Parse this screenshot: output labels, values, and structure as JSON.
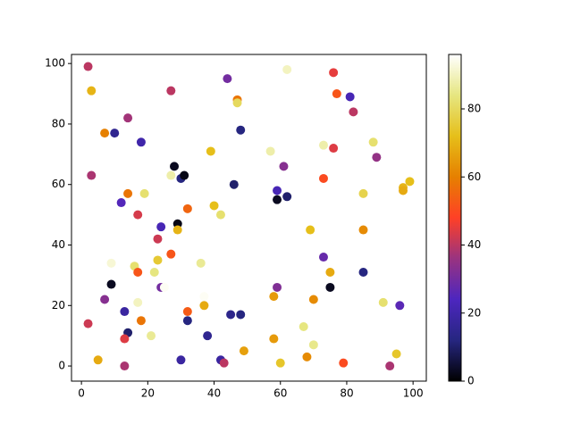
{
  "chart_data": {
    "type": "scatter",
    "x": [
      2,
      3,
      27,
      44,
      47,
      47,
      62,
      76,
      77,
      81,
      82,
      7,
      10,
      14,
      18,
      48,
      39,
      57,
      73,
      76,
      88,
      89,
      3,
      28,
      27,
      30,
      31,
      46,
      61,
      73,
      14,
      19,
      12,
      17,
      32,
      40,
      42,
      59,
      59,
      62,
      85,
      97,
      97,
      99,
      24,
      29,
      29,
      23,
      69,
      85,
      9,
      16,
      23,
      27,
      22,
      17,
      36,
      73,
      75,
      85,
      9,
      7,
      24,
      25,
      37,
      37,
      58,
      59,
      70,
      75,
      91,
      96,
      2,
      13,
      17,
      18,
      32,
      32,
      45,
      48,
      14,
      13,
      21,
      38,
      67,
      70,
      58,
      68,
      49,
      5,
      30,
      42,
      43,
      60,
      79,
      95,
      13,
      93
    ],
    "y": [
      99,
      91,
      91,
      95,
      88,
      87,
      98,
      97,
      90,
      89,
      84,
      77,
      77,
      82,
      74,
      78,
      71,
      71,
      73,
      72,
      74,
      69,
      63,
      66,
      63,
      62,
      63,
      60,
      66,
      62,
      57,
      57,
      54,
      50,
      52,
      53,
      50,
      58,
      55,
      56,
      57,
      59,
      58,
      61,
      46,
      47,
      45,
      42,
      45,
      45,
      34,
      33,
      35,
      37,
      31,
      31,
      34,
      36,
      31,
      31,
      27,
      22,
      26,
      26,
      23,
      20,
      23,
      26,
      22,
      26,
      21,
      20,
      14,
      18,
      21,
      15,
      18,
      15,
      17,
      17,
      11,
      9,
      10,
      10,
      13,
      7,
      9,
      3,
      5,
      2,
      2,
      2,
      1,
      1,
      1,
      4,
      0,
      0
    ],
    "c": [
      40,
      70,
      40,
      30,
      58,
      80,
      90,
      45,
      52,
      22,
      40,
      60,
      15,
      37,
      20,
      12,
      72,
      88,
      88,
      44,
      82,
      35,
      38,
      3,
      88,
      12,
      2,
      10,
      33,
      50,
      58,
      82,
      25,
      43,
      55,
      72,
      82,
      22,
      3,
      10,
      78,
      70,
      68,
      72,
      22,
      2,
      70,
      42,
      72,
      62,
      92,
      82,
      75,
      52,
      84,
      52,
      86,
      28,
      68,
      12,
      3,
      33,
      30,
      95,
      95,
      68,
      65,
      32,
      62,
      3,
      82,
      26,
      42,
      18,
      90,
      58,
      53,
      12,
      14,
      12,
      10,
      44,
      86,
      15,
      84,
      85,
      65,
      62,
      66,
      68,
      18,
      18,
      40,
      74,
      50,
      74,
      38,
      38
    ],
    "xlim": [
      -3,
      104
    ],
    "ylim": [
      -5,
      103
    ],
    "xticks": [
      0,
      20,
      40,
      60,
      80,
      100
    ],
    "yticks": [
      0,
      20,
      40,
      60,
      80,
      100
    ],
    "colormap": [
      "#000000",
      "#262680",
      "#4d26bf",
      "#993380",
      "#ff4026",
      "#e68000",
      "#e6bf1a",
      "#e6e680",
      "#ffffff"
    ],
    "clim": [
      0,
      96
    ],
    "cticks": [
      0,
      20,
      40,
      60,
      80
    ]
  }
}
